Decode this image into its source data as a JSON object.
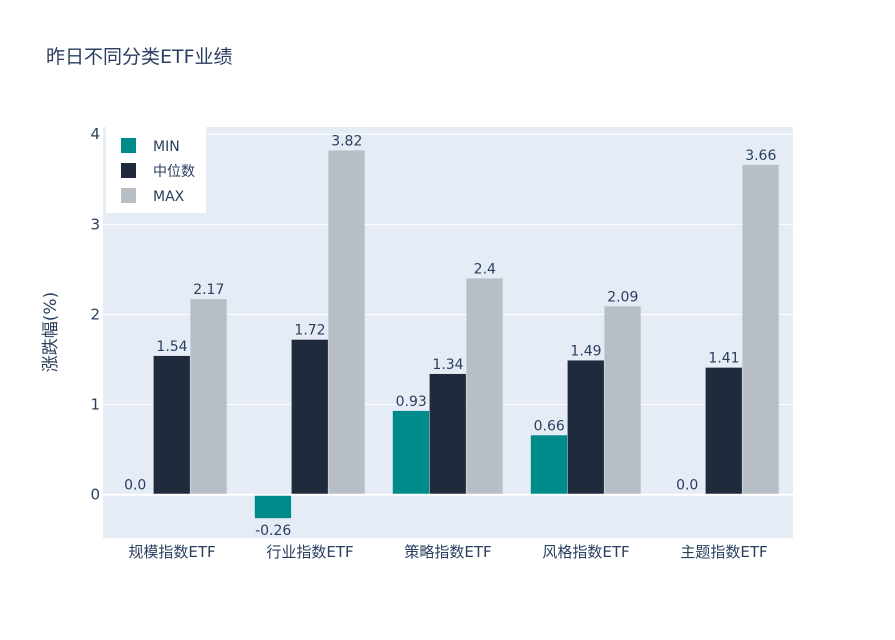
{
  "chart_data": {
    "type": "bar",
    "title": "昨日不同分类ETF业绩",
    "ylabel": "涨跌幅(%)",
    "xlabel": "",
    "categories": [
      "规模指数ETF",
      "行业指数ETF",
      "策略指数ETF",
      "风格指数ETF",
      "主题指数ETF"
    ],
    "series": [
      {
        "name": "MIN",
        "color": "#008b8b",
        "values": [
          0.0,
          -0.26,
          0.93,
          0.66,
          0.0
        ],
        "labels": [
          "0.0",
          "-0.26",
          "0.93",
          "0.66",
          "0.0"
        ]
      },
      {
        "name": "中位数",
        "color": "#1f2a3c",
        "values": [
          1.54,
          1.72,
          1.34,
          1.49,
          1.41
        ],
        "labels": [
          "1.54",
          "1.72",
          "1.34",
          "1.49",
          "1.41"
        ]
      },
      {
        "name": "MAX",
        "color": "#b8bec6",
        "values": [
          2.17,
          3.82,
          2.4,
          2.09,
          3.66
        ],
        "labels": [
          "2.17",
          "3.82",
          "2.4",
          "2.09",
          "3.66"
        ]
      }
    ],
    "ylim": [
      -0.48,
      4.08
    ],
    "yticks": [
      0,
      1,
      2,
      3,
      4
    ],
    "grid": true,
    "legend_position": "top-left",
    "plot_background": "#e5ecf6"
  }
}
